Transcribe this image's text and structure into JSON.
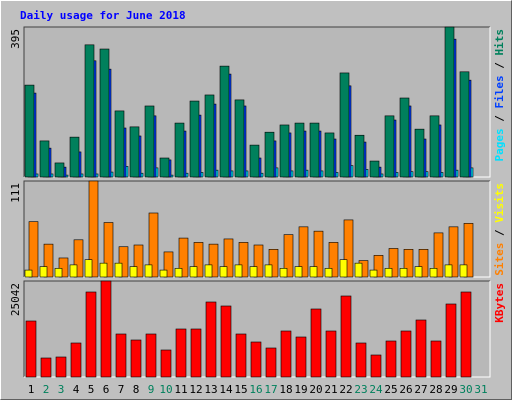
{
  "chart_data": [
    {
      "type": "bar",
      "title": "Daily usage for June 2018",
      "ylim": [
        0,
        395
      ],
      "legend_separator": " / ",
      "series": [
        {
          "name": "Pages",
          "color": "#00e0ff",
          "values": [
            8,
            8,
            5,
            8,
            8,
            13,
            28,
            10,
            24,
            5,
            10,
            12,
            18,
            16,
            16,
            10,
            24,
            16,
            18,
            16,
            12,
            30,
            20,
            8,
            12,
            14,
            14,
            12,
            18,
            24,
            0
          ]
        },
        {
          "name": "Files",
          "color": "#0040ff",
          "values": [
            221,
            76,
            26,
            66,
            306,
            284,
            129,
            108,
            161,
            45,
            121,
            163,
            192,
            271,
            187,
            50,
            95,
            116,
            121,
            121,
            100,
            240,
            92,
            26,
            150,
            187,
            100,
            137,
            363,
            255,
            0
          ]
        },
        {
          "name": "Hits",
          "color": "#00805c",
          "values": [
            242,
            95,
            37,
            105,
            348,
            337,
            174,
            132,
            187,
            50,
            142,
            200,
            216,
            292,
            203,
            84,
            118,
            137,
            142,
            142,
            116,
            274,
            110,
            42,
            161,
            208,
            126,
            161,
            395,
            277,
            0
          ]
        }
      ]
    },
    {
      "type": "bar",
      "ylim": [
        0,
        111
      ],
      "legend_separator": " / ",
      "series": [
        {
          "name": "Sites",
          "color": "#ff8000",
          "values": [
            64,
            38,
            22,
            43,
            111,
            63,
            35,
            37,
            74,
            29,
            45,
            40,
            38,
            44,
            40,
            37,
            32,
            49,
            58,
            53,
            40,
            66,
            19,
            25,
            33,
            32,
            32,
            51,
            58,
            62,
            0
          ]
        },
        {
          "name": "Visits",
          "color": "#ffff00",
          "values": [
            8,
            12,
            10,
            14,
            20,
            16,
            16,
            12,
            14,
            8,
            10,
            12,
            14,
            12,
            14,
            12,
            14,
            10,
            12,
            12,
            10,
            20,
            16,
            8,
            10,
            10,
            12,
            10,
            14,
            14,
            0
          ]
        }
      ]
    },
    {
      "type": "bar",
      "ylim": [
        0,
        25042
      ],
      "categories": [
        "1",
        "2",
        "3",
        "4",
        "5",
        "6",
        "7",
        "8",
        "9",
        "10",
        "11",
        "12",
        "13",
        "14",
        "15",
        "16",
        "17",
        "18",
        "19",
        "20",
        "21",
        "22",
        "23",
        "24",
        "25",
        "26",
        "27",
        "28",
        "29",
        "30",
        "31"
      ],
      "category_colors": [
        "#000000",
        "#00805c",
        "#00805c",
        "#000000",
        "#000000",
        "#000000",
        "#000000",
        "#000000",
        "#00805c",
        "#00805c",
        "#000000",
        "#000000",
        "#000000",
        "#000000",
        "#000000",
        "#00805c",
        "#00805c",
        "#000000",
        "#000000",
        "#000000",
        "#000000",
        "#000000",
        "#00805c",
        "#00805c",
        "#000000",
        "#000000",
        "#000000",
        "#000000",
        "#000000",
        "#00805c",
        "#00805c"
      ],
      "series": [
        {
          "name": "KBytes",
          "color": "#ff0000",
          "values": [
            14608,
            4956,
            5217,
            8869,
            22173,
            25042,
            11217,
            9652,
            11217,
            7043,
            12521,
            12521,
            19564,
            18521,
            11217,
            9130,
            7565,
            12000,
            10434,
            17738,
            12000,
            21130,
            8869,
            5739,
            9391,
            12000,
            14869,
            9391,
            19043,
            22173,
            0
          ]
        }
      ]
    }
  ]
}
